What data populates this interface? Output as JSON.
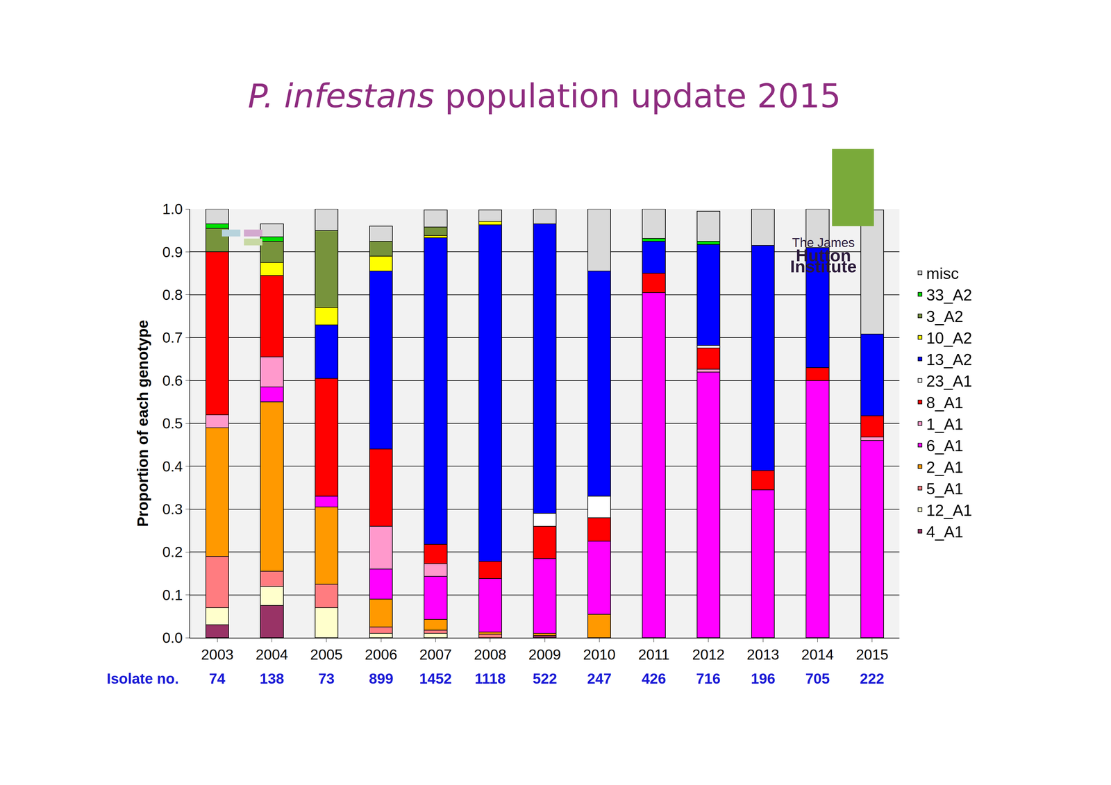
{
  "chart_data": {
    "type": "bar",
    "title": "P. infestans population update 2015",
    "y_label": "Proportion of each genotype",
    "categories": [
      "2003",
      "2004",
      "2005",
      "2006",
      "2007",
      "2008",
      "2009",
      "2010",
      "2011",
      "2012",
      "2013",
      "2014",
      "2015"
    ],
    "isolate_label": "Isolate no.",
    "isolate_counts": [
      74,
      138,
      73,
      899,
      1452,
      1118,
      522,
      247,
      426,
      716,
      196,
      705,
      222
    ],
    "logo_text": [
      "The James",
      "Hutton",
      "Institute"
    ],
    "stacked": true,
    "grid": true,
    "legend": "right",
    "ylim": [
      0,
      1
    ],
    "yticks": [
      {
        "value": 0,
        "label": "0.0"
      },
      0.1,
      0.2,
      0.3,
      0.4,
      0.5,
      0.6,
      0.7,
      0.8,
      0.9,
      {
        "value": 1,
        "label": "1.0"
      }
    ],
    "series": [
      {
        "name": "misc",
        "color": "#d9d9d9",
        "values": [
          0.035,
          0.03,
          0.05,
          0.035,
          0.04,
          0.027,
          0.035,
          0.145,
          0.069,
          0.07,
          0.085,
          0.09,
          0.29
        ]
      },
      {
        "name": "33_A2",
        "color": "#00e000",
        "values": [
          0.01,
          0.01,
          0,
          0,
          0,
          0,
          0,
          0,
          0.006,
          0.008,
          0,
          0,
          0
        ]
      },
      {
        "name": "3_A2",
        "color": "#77933c",
        "values": [
          0.055,
          0.05,
          0.18,
          0.035,
          0.02,
          0,
          0,
          0,
          0,
          0,
          0,
          0,
          0
        ]
      },
      {
        "name": "10_A2",
        "color": "#ffff00",
        "values": [
          0,
          0.03,
          0.04,
          0.035,
          0.005,
          0.008,
          0,
          0,
          0,
          0,
          0,
          0,
          0
        ]
      },
      {
        "name": "13_A2",
        "color": "#0000ff",
        "values": [
          0,
          0,
          0.125,
          0.415,
          0.715,
          0.785,
          0.675,
          0.525,
          0.075,
          0.235,
          0.525,
          0.28,
          0.19
        ]
      },
      {
        "name": "23_A1",
        "color": "#ffffff",
        "values": [
          0,
          0,
          0,
          0,
          0,
          0,
          0.03,
          0.05,
          0,
          0.006,
          0,
          0,
          0
        ]
      },
      {
        "name": "8_A1",
        "color": "#ff0000",
        "values": [
          0.38,
          0.19,
          0.275,
          0.18,
          0.045,
          0.04,
          0.075,
          0.055,
          0.045,
          0.05,
          0.045,
          0.03,
          0.05
        ]
      },
      {
        "name": "1_A1",
        "color": "#ff99cc",
        "values": [
          0.03,
          0.07,
          0,
          0.1,
          0.03,
          0,
          0,
          0,
          0,
          0.006,
          0,
          0,
          0.008
        ]
      },
      {
        "name": "6_A1",
        "color": "#ff00ff",
        "values": [
          0,
          0.035,
          0.025,
          0.07,
          0.1,
          0.125,
          0.175,
          0.17,
          0.805,
          0.62,
          0.345,
          0.6,
          0.46
        ]
      },
      {
        "name": "2_A1",
        "color": "#ff9900",
        "values": [
          0.3,
          0.395,
          0.18,
          0.065,
          0.025,
          0.005,
          0.005,
          0.055,
          0,
          0,
          0,
          0,
          0
        ]
      },
      {
        "name": "5_A1",
        "color": "#ff7c80",
        "values": [
          0.12,
          0.035,
          0.055,
          0.015,
          0.008,
          0.008,
          0,
          0,
          0,
          0,
          0,
          0,
          0
        ]
      },
      {
        "name": "12_A1",
        "color": "#ffffcc",
        "values": [
          0.04,
          0.045,
          0.07,
          0.01,
          0.01,
          0,
          0,
          0,
          0,
          0,
          0,
          0,
          0
        ]
      },
      {
        "name": "4_A1",
        "color": "#993366",
        "values": [
          0.03,
          0.075,
          0,
          0,
          0,
          0,
          0.005,
          0,
          0,
          0,
          0,
          0,
          0
        ]
      }
    ]
  }
}
